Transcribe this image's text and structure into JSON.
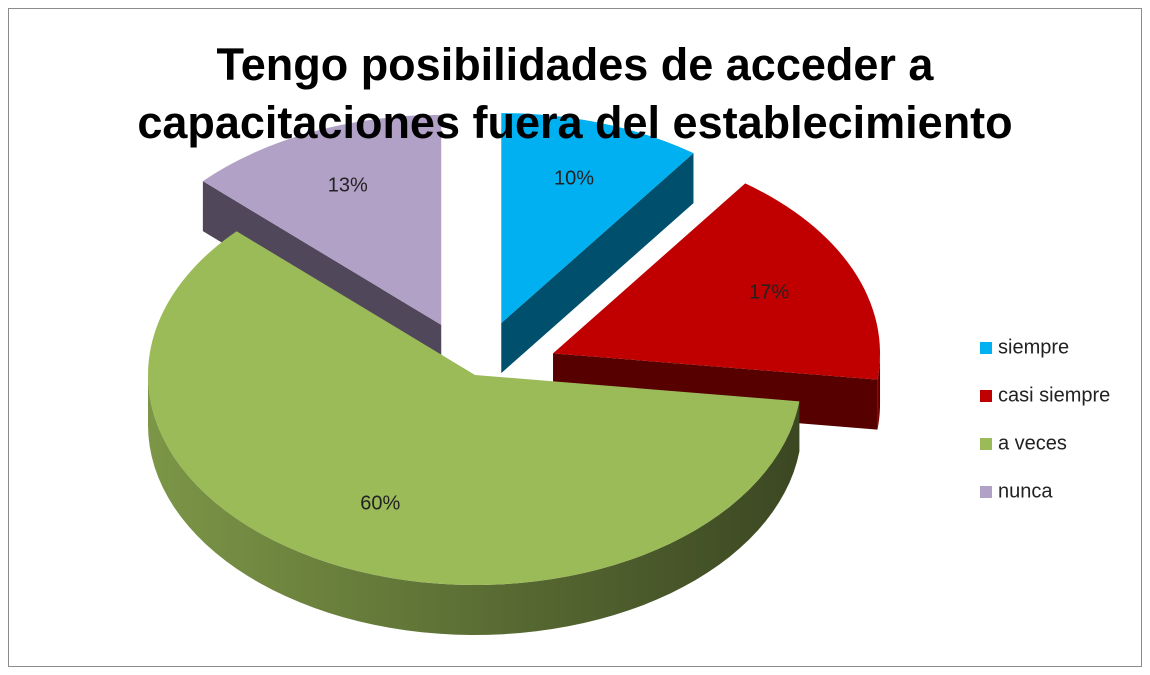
{
  "chart_data": {
    "type": "pie",
    "title": "Tengo posibilidades de acceder a\ncapacitaciones fuera del establecimiento",
    "categories": [
      "siempre",
      "casi siempre",
      "a veces",
      "nunca"
    ],
    "values": [
      10,
      17,
      60,
      13
    ],
    "value_labels": [
      "10%",
      "17%",
      "60%",
      "13%"
    ],
    "colors": [
      "#00b0f0",
      "#c00000",
      "#9bbb59",
      "#b2a1c7"
    ],
    "legend": "right"
  }
}
